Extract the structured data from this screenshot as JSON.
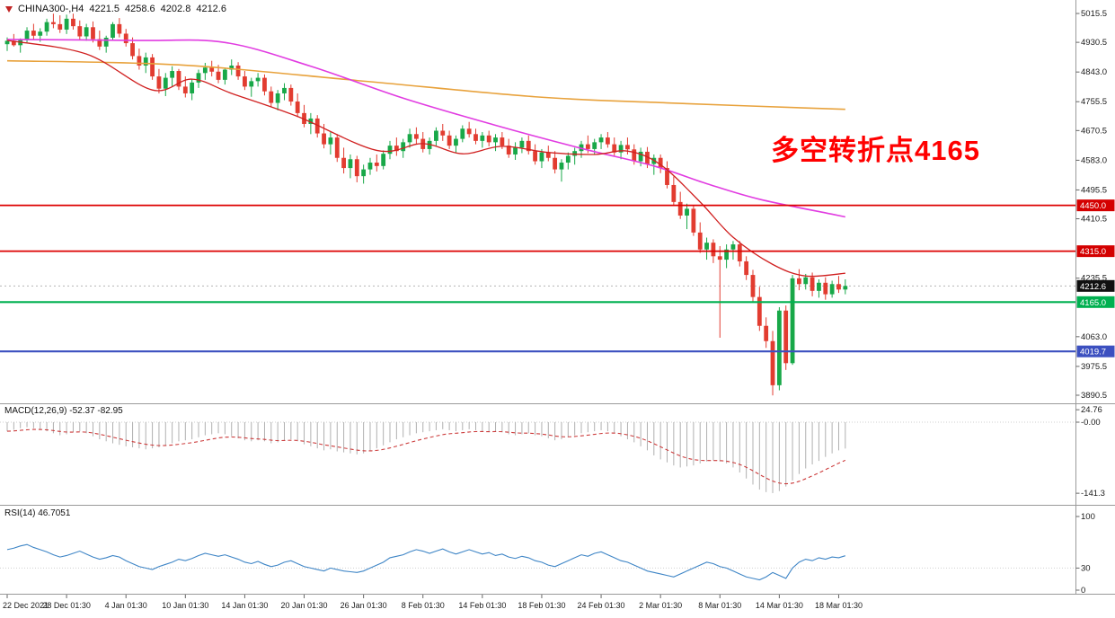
{
  "header": {
    "symbol": "CHINA300-,H4",
    "open": "4221.5",
    "high": "4258.6",
    "low": "4202.8",
    "close": "4212.6"
  },
  "annotation": {
    "text": "多空转折点4165",
    "color": "#ff0000"
  },
  "icons": {
    "symbol_marker_icon": "triangle-down-red"
  },
  "panels": {
    "macd": {
      "label": "MACD(12,26,9) -52.37 -82.95",
      "axis_labels": [
        "24.76",
        "-0.00",
        "-141.3"
      ],
      "axis_values": [
        24.76,
        0,
        -141.3
      ]
    },
    "rsi": {
      "label": "RSI(14) 46.7051",
      "axis_labels": [
        "100",
        "30",
        "0"
      ],
      "axis_values": [
        100,
        30,
        0
      ],
      "levels": [
        30
      ]
    }
  },
  "price_axis": {
    "labels": [
      "5015.5",
      "4930.5",
      "4843.0",
      "4755.5",
      "4670.5",
      "4583.0",
      "4495.5",
      "4410.5",
      "4235.5",
      "4063.0",
      "3975.5",
      "3890.5"
    ],
    "badges": [
      {
        "text": "4450.0",
        "color": "#d40000"
      },
      {
        "text": "4315.0",
        "color": "#d40000"
      },
      {
        "text": "4212.6",
        "color": "#101010"
      },
      {
        "text": "4165.0",
        "color": "#00b050"
      },
      {
        "text": "4019.7",
        "color": "#3c50c0"
      }
    ]
  },
  "colors": {
    "up": "#18a848",
    "down": "#e23c30",
    "ma_fast": "#d02020",
    "ma_mid": "#e13ce1",
    "ma_slow": "#e8a23c",
    "macd_hist": "#b0b0b0",
    "macd_signal": "#cc3b3b",
    "rsi": "#3e85c6",
    "axis_text": "#1a1a1a"
  },
  "chart_data": {
    "type": "candlestick",
    "symbol": "CHINA300-",
    "timeframe": "H4",
    "ohlc_current": {
      "open": 4221.5,
      "high": 4258.6,
      "low": 4202.8,
      "close": 4212.6
    },
    "current_price": 4212.6,
    "ylim": [
      3869,
      5055
    ],
    "time_labels": [
      "22 Dec 2021",
      "28 Dec 01:30",
      "4 Jan 01:30",
      "10 Jan 01:30",
      "14 Jan 01:30",
      "20 Jan 01:30",
      "26 Jan 01:30",
      "8 Feb 01:30",
      "14 Feb 01:30",
      "18 Feb 01:30",
      "24 Feb 01:30",
      "2 Mar 01:30",
      "8 Mar 01:30",
      "14 Mar 01:30",
      "18 Mar 01:30"
    ],
    "hlines": [
      {
        "price": 4450.0,
        "color": "#dd0000",
        "width": 1.8
      },
      {
        "price": 4315.0,
        "color": "#dd0000",
        "width": 1.8
      },
      {
        "price": 4165.0,
        "color": "#00b050",
        "width": 2.2
      },
      {
        "price": 4019.7,
        "color": "#3c50c0",
        "width": 2.2
      }
    ],
    "candles": [
      [
        4925,
        4945,
        4905,
        4935
      ],
      [
        4935,
        4955,
        4918,
        4922
      ],
      [
        4922,
        4942,
        4900,
        4938
      ],
      [
        4938,
        4975,
        4930,
        4965
      ],
      [
        4965,
        4985,
        4940,
        4950
      ],
      [
        4950,
        4972,
        4932,
        4962
      ],
      [
        4962,
        5000,
        4950,
        4990
      ],
      [
        4990,
        5015,
        4972,
        4984
      ],
      [
        4984,
        5010,
        4958,
        4968
      ],
      [
        4968,
        5012,
        4955,
        5000
      ],
      [
        5000,
        5015,
        4968,
        4978
      ],
      [
        4978,
        4995,
        4938,
        4948
      ],
      [
        4948,
        4985,
        4935,
        4975
      ],
      [
        4975,
        4992,
        4930,
        4940
      ],
      [
        4940,
        4965,
        4908,
        4918
      ],
      [
        4918,
        4950,
        4900,
        4944
      ],
      [
        4944,
        4990,
        4936,
        4984
      ],
      [
        4984,
        5002,
        4945,
        4956
      ],
      [
        4956,
        4970,
        4918,
        4928
      ],
      [
        4928,
        4945,
        4880,
        4890
      ],
      [
        4890,
        4912,
        4850,
        4862
      ],
      [
        4862,
        4900,
        4840,
        4886
      ],
      [
        4886,
        4896,
        4820,
        4830
      ],
      [
        4830,
        4852,
        4780,
        4794
      ],
      [
        4794,
        4840,
        4772,
        4826
      ],
      [
        4826,
        4860,
        4800,
        4846
      ],
      [
        4846,
        4852,
        4790,
        4800
      ],
      [
        4800,
        4830,
        4768,
        4780
      ],
      [
        4780,
        4822,
        4760,
        4812
      ],
      [
        4812,
        4850,
        4796,
        4840
      ],
      [
        4840,
        4870,
        4820,
        4856
      ],
      [
        4856,
        4876,
        4830,
        4844
      ],
      [
        4844,
        4864,
        4810,
        4820
      ],
      [
        4820,
        4856,
        4806,
        4850
      ],
      [
        4850,
        4880,
        4834,
        4862
      ],
      [
        4862,
        4872,
        4820,
        4830
      ],
      [
        4830,
        4846,
        4790,
        4800
      ],
      [
        4800,
        4826,
        4770,
        4816
      ],
      [
        4816,
        4840,
        4800,
        4826
      ],
      [
        4826,
        4836,
        4774,
        4786
      ],
      [
        4786,
        4800,
        4740,
        4752
      ],
      [
        4752,
        4790,
        4730,
        4780
      ],
      [
        4780,
        4810,
        4760,
        4796
      ],
      [
        4796,
        4806,
        4744,
        4756
      ],
      [
        4756,
        4780,
        4710,
        4722
      ],
      [
        4722,
        4746,
        4680,
        4690
      ],
      [
        4690,
        4722,
        4660,
        4706
      ],
      [
        4706,
        4716,
        4650,
        4662
      ],
      [
        4662,
        4690,
        4618,
        4630
      ],
      [
        4630,
        4666,
        4600,
        4650
      ],
      [
        4650,
        4660,
        4578,
        4590
      ],
      [
        4590,
        4620,
        4544,
        4560
      ],
      [
        4560,
        4600,
        4530,
        4586
      ],
      [
        4586,
        4596,
        4518,
        4536
      ],
      [
        4536,
        4570,
        4514,
        4556
      ],
      [
        4556,
        4590,
        4540,
        4576
      ],
      [
        4576,
        4600,
        4550,
        4566
      ],
      [
        4566,
        4612,
        4556,
        4602
      ],
      [
        4602,
        4640,
        4586,
        4626
      ],
      [
        4626,
        4650,
        4596,
        4610
      ],
      [
        4610,
        4646,
        4590,
        4636
      ],
      [
        4636,
        4676,
        4620,
        4660
      ],
      [
        4660,
        4680,
        4630,
        4646
      ],
      [
        4646,
        4666,
        4606,
        4616
      ],
      [
        4616,
        4650,
        4600,
        4640
      ],
      [
        4640,
        4680,
        4626,
        4670
      ],
      [
        4670,
        4690,
        4640,
        4656
      ],
      [
        4656,
        4670,
        4616,
        4626
      ],
      [
        4626,
        4656,
        4606,
        4646
      ],
      [
        4646,
        4686,
        4636,
        4676
      ],
      [
        4676,
        4696,
        4650,
        4660
      ],
      [
        4660,
        4676,
        4630,
        4640
      ],
      [
        4640,
        4666,
        4620,
        4656
      ],
      [
        4656,
        4670,
        4624,
        4636
      ],
      [
        4636,
        4660,
        4610,
        4650
      ],
      [
        4650,
        4666,
        4616,
        4626
      ],
      [
        4626,
        4646,
        4590,
        4600
      ],
      [
        4600,
        4636,
        4584,
        4620
      ],
      [
        4620,
        4650,
        4604,
        4640
      ],
      [
        4640,
        4656,
        4600,
        4610
      ],
      [
        4610,
        4630,
        4570,
        4580
      ],
      [
        4580,
        4616,
        4560,
        4606
      ],
      [
        4606,
        4626,
        4580,
        4590
      ],
      [
        4590,
        4610,
        4544,
        4556
      ],
      [
        4556,
        4586,
        4520,
        4576
      ],
      [
        4576,
        4606,
        4556,
        4596
      ],
      [
        4596,
        4620,
        4570,
        4610
      ],
      [
        4610,
        4640,
        4590,
        4630
      ],
      [
        4630,
        4656,
        4604,
        4616
      ],
      [
        4616,
        4646,
        4600,
        4636
      ],
      [
        4636,
        4660,
        4616,
        4650
      ],
      [
        4650,
        4666,
        4620,
        4630
      ],
      [
        4630,
        4650,
        4596,
        4606
      ],
      [
        4606,
        4640,
        4586,
        4628
      ],
      [
        4628,
        4650,
        4600,
        4615
      ],
      [
        4615,
        4630,
        4570,
        4580
      ],
      [
        4580,
        4620,
        4565,
        4608
      ],
      [
        4608,
        4622,
        4560,
        4572
      ],
      [
        4572,
        4600,
        4540,
        4590
      ],
      [
        4590,
        4600,
        4545,
        4560
      ],
      [
        4560,
        4580,
        4500,
        4510
      ],
      [
        4510,
        4535,
        4450,
        4460
      ],
      [
        4460,
        4490,
        4410,
        4420
      ],
      [
        4420,
        4455,
        4380,
        4440
      ],
      [
        4440,
        4450,
        4360,
        4370
      ],
      [
        4370,
        4400,
        4310,
        4320
      ],
      [
        4320,
        4355,
        4290,
        4340
      ],
      [
        4340,
        4350,
        4280,
        4300
      ],
      [
        4300,
        4330,
        4060,
        4290
      ],
      [
        4290,
        4335,
        4265,
        4320
      ],
      [
        4320,
        4345,
        4290,
        4335
      ],
      [
        4335,
        4345,
        4270,
        4285
      ],
      [
        4285,
        4300,
        4230,
        4245
      ],
      [
        4245,
        4260,
        4165,
        4180
      ],
      [
        4180,
        4210,
        4080,
        4095
      ],
      [
        4095,
        4120,
        4030,
        4050
      ],
      [
        4050,
        4080,
        3890,
        3920
      ],
      [
        3920,
        4150,
        3905,
        4140
      ],
      [
        4140,
        4155,
        3965,
        3985
      ],
      [
        3985,
        4245,
        3980,
        4235
      ],
      [
        4235,
        4262,
        4200,
        4218
      ],
      [
        4218,
        4248,
        4202,
        4238
      ],
      [
        4238,
        4252,
        4182,
        4198
      ],
      [
        4198,
        4232,
        4178,
        4222
      ],
      [
        4222,
        4238,
        4172,
        4188
      ],
      [
        4188,
        4228,
        4178,
        4218
      ],
      [
        4218,
        4242,
        4192,
        4202
      ],
      [
        4202,
        4232,
        4188,
        4212.6
      ]
    ],
    "ma_fast_red": [
      [
        0,
        4936
      ],
      [
        12,
        4896
      ],
      [
        22,
        4790
      ],
      [
        28,
        4822
      ],
      [
        34,
        4780
      ],
      [
        44,
        4712
      ],
      [
        56,
        4612
      ],
      [
        63,
        4632
      ],
      [
        69,
        4602
      ],
      [
        75,
        4624
      ],
      [
        82,
        4606
      ],
      [
        89,
        4600
      ],
      [
        94,
        4610
      ],
      [
        99,
        4570
      ],
      [
        105,
        4460
      ],
      [
        110,
        4356
      ],
      [
        116,
        4276
      ],
      [
        121,
        4242
      ],
      [
        127,
        4250
      ]
    ],
    "ma_mid_magenta": [
      [
        0,
        4939
      ],
      [
        20,
        4936
      ],
      [
        33,
        4930
      ],
      [
        46,
        4860
      ],
      [
        60,
        4766
      ],
      [
        74,
        4686
      ],
      [
        87,
        4618
      ],
      [
        98,
        4566
      ],
      [
        106,
        4514
      ],
      [
        114,
        4468
      ],
      [
        125,
        4424
      ],
      [
        127,
        4416
      ]
    ],
    "ma_slow_orange": [
      [
        0,
        4876
      ],
      [
        26,
        4864
      ],
      [
        53,
        4818
      ],
      [
        80,
        4770
      ],
      [
        100,
        4752
      ],
      [
        127,
        4733
      ]
    ],
    "macd_histogram": [
      -18,
      -15,
      -12,
      -10,
      -12,
      -15,
      -18,
      -22,
      -26,
      -24,
      -20,
      -18,
      -22,
      -28,
      -34,
      -38,
      -42,
      -45,
      -48,
      -50,
      -52,
      -54,
      -52,
      -50,
      -46,
      -42,
      -38,
      -36,
      -34,
      -30,
      -26,
      -24,
      -22,
      -24,
      -28,
      -32,
      -36,
      -38,
      -36,
      -38,
      -42,
      -40,
      -36,
      -34,
      -38,
      -44,
      -48,
      -52,
      -56,
      -54,
      -58,
      -60,
      -62,
      -64,
      -62,
      -58,
      -52,
      -46,
      -40,
      -34,
      -30,
      -26,
      -22,
      -20,
      -18,
      -16,
      -14,
      -16,
      -18,
      -16,
      -14,
      -16,
      -18,
      -20,
      -18,
      -20,
      -24,
      -26,
      -24,
      -22,
      -26,
      -28,
      -32,
      -36,
      -34,
      -30,
      -26,
      -22,
      -20,
      -18,
      -16,
      -18,
      -22,
      -28,
      -34,
      -40,
      -48,
      -56,
      -66,
      -74,
      -80,
      -86,
      -90,
      -88,
      -86,
      -82,
      -78,
      -76,
      -78,
      -82,
      -90,
      -100,
      -112,
      -124,
      -134,
      -139,
      -141,
      -137,
      -128,
      -116,
      -103,
      -92,
      -84,
      -77,
      -69,
      -62,
      -56,
      -52.4
    ],
    "macd_value": -52.37,
    "macd_signal_value": -82.95,
    "rsi": [
      55,
      57,
      60,
      62,
      58,
      55,
      52,
      48,
      45,
      47,
      50,
      53,
      49,
      45,
      42,
      44,
      47,
      45,
      40,
      36,
      32,
      30,
      28,
      32,
      35,
      38,
      42,
      40,
      43,
      47,
      50,
      48,
      46,
      48,
      45,
      42,
      38,
      36,
      39,
      35,
      32,
      34,
      38,
      40,
      36,
      32,
      30,
      28,
      26,
      30,
      28,
      26,
      25,
      24,
      26,
      30,
      34,
      38,
      44,
      46,
      48,
      52,
      55,
      53,
      50,
      53,
      56,
      52,
      49,
      52,
      55,
      52,
      49,
      51,
      47,
      49,
      45,
      43,
      46,
      44,
      40,
      38,
      34,
      32,
      36,
      40,
      44,
      48,
      46,
      50,
      52,
      48,
      44,
      40,
      38,
      34,
      30,
      26,
      24,
      22,
      20,
      18,
      22,
      26,
      30,
      34,
      38,
      36,
      32,
      30,
      26,
      22,
      18,
      16,
      14,
      18,
      24,
      20,
      16,
      30,
      38,
      42,
      40,
      44,
      42,
      45,
      44,
      46.7
    ],
    "rsi_value": 46.7051
  }
}
